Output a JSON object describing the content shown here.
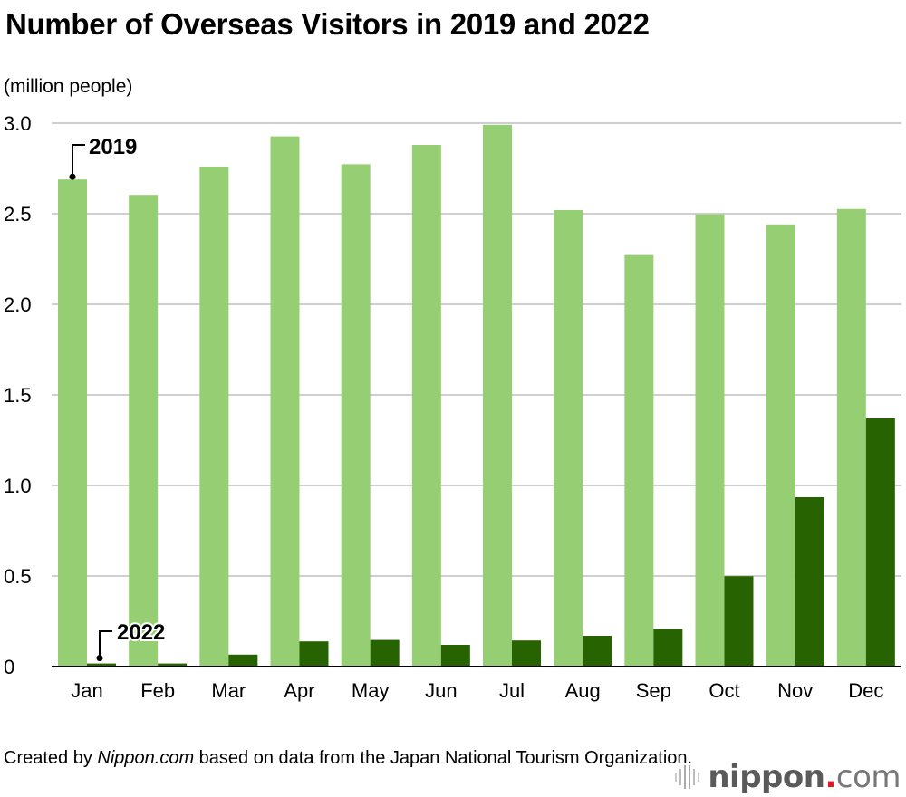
{
  "chart_data": {
    "type": "bar",
    "title": "Number of Overseas Visitors in 2019 and 2022",
    "ylabel": "(million people)",
    "xlabel": "",
    "categories": [
      "Jan",
      "Feb",
      "Mar",
      "Apr",
      "May",
      "Jun",
      "Jul",
      "Aug",
      "Sep",
      "Oct",
      "Nov",
      "Dec"
    ],
    "series": [
      {
        "name": "2019",
        "color": "#96cf73",
        "values": [
          2.689,
          2.604,
          2.76,
          2.927,
          2.773,
          2.88,
          2.991,
          2.52,
          2.272,
          2.497,
          2.441,
          2.526
        ]
      },
      {
        "name": "2022",
        "color": "#276300",
        "values": [
          0.017,
          0.017,
          0.066,
          0.139,
          0.147,
          0.12,
          0.144,
          0.17,
          0.207,
          0.499,
          0.935,
          1.37
        ]
      }
    ],
    "ylim": [
      0,
      3.0
    ],
    "yticks": [
      "0",
      "0.5",
      "1.0",
      "1.5",
      "2.0",
      "2.5",
      "3.0"
    ],
    "grid": true,
    "legend": "inline labels on first month"
  },
  "footer": {
    "source_prefix": "Created by ",
    "source_site": "Nippon.com",
    "source_suffix": " based on data from the Japan National Tourism Organization.",
    "logo_main": "nippon",
    "logo_dot": ".",
    "logo_tld": "com"
  }
}
